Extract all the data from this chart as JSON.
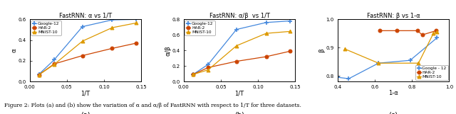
{
  "plot1": {
    "title": "FastRNN: α vs 1/T",
    "xlabel": "1/T",
    "ylabel": "α",
    "xlim": [
      0,
      0.15
    ],
    "ylim": [
      0,
      0.6
    ],
    "xticks": [
      0,
      0.05,
      0.1,
      0.15
    ],
    "yticks": [
      0,
      0.2,
      0.4,
      0.6
    ],
    "series": {
      "Google-12": {
        "x": [
          0.0125,
          0.033,
          0.071,
          0.111,
          0.143
        ],
        "y": [
          0.07,
          0.21,
          0.53,
          0.595,
          0.6
        ],
        "color": "#4488DD",
        "marker": "+"
      },
      "HAR-2": {
        "x": [
          0.0125,
          0.033,
          0.071,
          0.111,
          0.143
        ],
        "y": [
          0.065,
          0.17,
          0.25,
          0.32,
          0.37
        ],
        "color": "#CC4400",
        "marker": "o"
      },
      "MNIST-10": {
        "x": [
          0.0125,
          0.033,
          0.071,
          0.111,
          0.143
        ],
        "y": [
          0.065,
          0.165,
          0.39,
          0.52,
          0.565
        ],
        "color": "#DD9900",
        "marker": "^"
      }
    },
    "legend_loc": "upper left"
  },
  "plot2": {
    "title": "FastRNN: α/β  vs 1/T",
    "xlabel": "1/T",
    "ylabel": "α/β",
    "xlim": [
      0,
      0.15
    ],
    "ylim": [
      0,
      0.8
    ],
    "xticks": [
      0,
      0.05,
      0.1,
      0.15
    ],
    "yticks": [
      0,
      0.2,
      0.4,
      0.6,
      0.8
    ],
    "series": {
      "Google-12": {
        "x": [
          0.0125,
          0.033,
          0.071,
          0.111,
          0.143
        ],
        "y": [
          0.09,
          0.22,
          0.67,
          0.76,
          0.78
        ],
        "color": "#4488DD",
        "marker": "+"
      },
      "HAR-2": {
        "x": [
          0.0125,
          0.033,
          0.071,
          0.111,
          0.143
        ],
        "y": [
          0.09,
          0.18,
          0.26,
          0.32,
          0.39
        ],
        "color": "#CC4400",
        "marker": "o"
      },
      "MNIST-10": {
        "x": [
          0.0125,
          0.033,
          0.071,
          0.111,
          0.143
        ],
        "y": [
          0.09,
          0.15,
          0.46,
          0.62,
          0.645
        ],
        "color": "#DD9900",
        "marker": "^"
      }
    },
    "legend_loc": "upper left"
  },
  "plot3": {
    "title": "FastRNN: β vs 1-α",
    "xlabel": "1-α",
    "ylabel": "β",
    "xlim": [
      0.4,
      1.0
    ],
    "ylim": [
      0.78,
      1.0
    ],
    "xticks": [
      0.4,
      0.6,
      0.8,
      1.0
    ],
    "yticks": [
      0.8,
      0.9,
      1.0
    ],
    "series": {
      "Google - 12": {
        "x": [
          0.4,
          0.46,
          0.62,
          0.79,
          0.935
        ],
        "y": [
          0.795,
          0.79,
          0.845,
          0.855,
          0.935
        ],
        "color": "#4488DD",
        "marker": "+"
      },
      "HAR-2": {
        "x": [
          0.625,
          0.72,
          0.83,
          0.855,
          0.93
        ],
        "y": [
          0.96,
          0.96,
          0.96,
          0.945,
          0.96
        ],
        "color": "#CC4400",
        "marker": "o"
      },
      "MNIST-10": {
        "x": [
          0.44,
          0.62,
          0.835,
          0.915,
          0.935
        ],
        "y": [
          0.895,
          0.845,
          0.845,
          0.95,
          0.955
        ],
        "color": "#DD9900",
        "marker": "^"
      }
    },
    "legend_loc": "lower right"
  },
  "caption": "Figure 2: Plots (a) and (b) show the variation of α and α/β of FastRNN with respect to 1/T for three datasets.",
  "bg_color": "#FFFFFF"
}
